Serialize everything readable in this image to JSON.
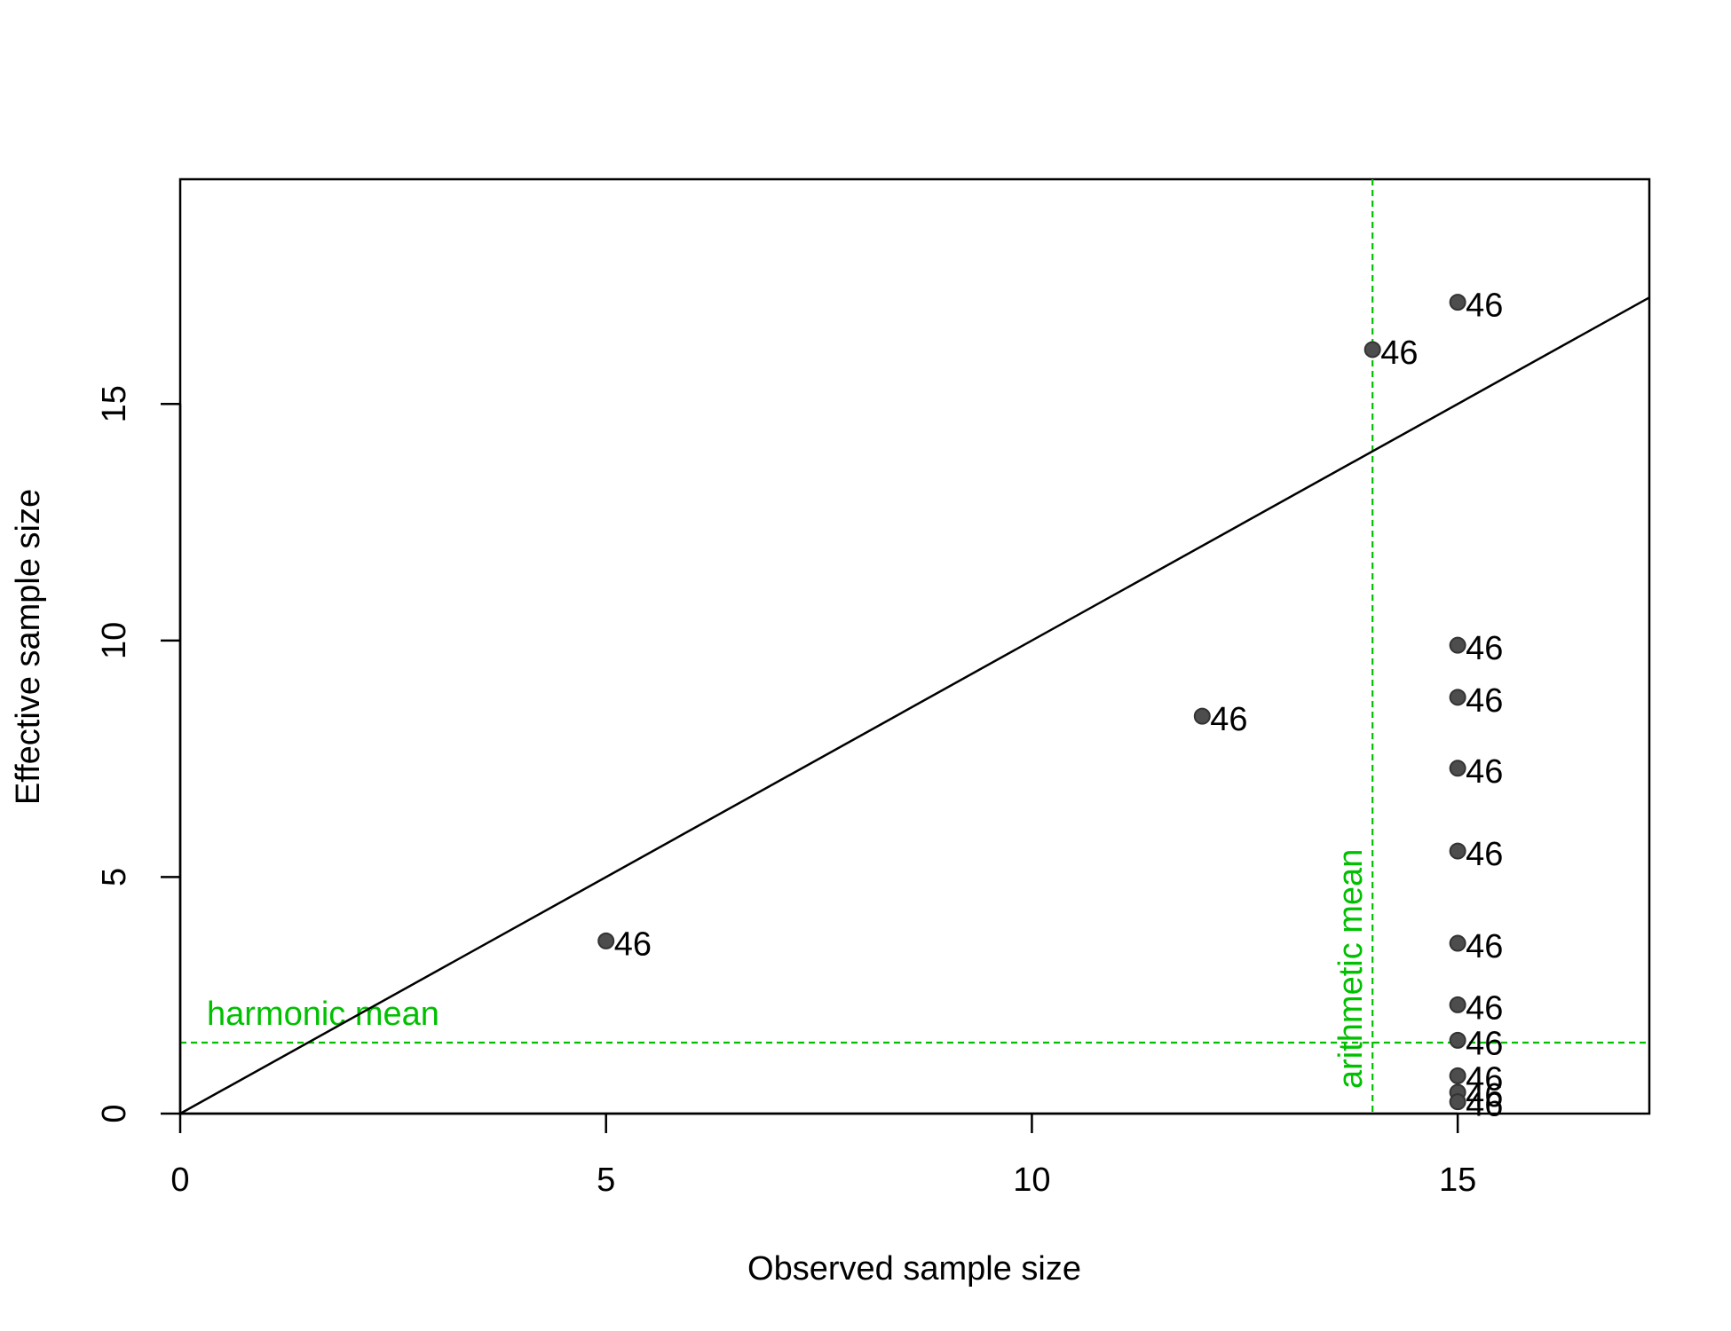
{
  "chart_data": {
    "type": "scatter",
    "title": "",
    "xlabel": "Observed sample size",
    "ylabel": "Effective sample size",
    "xlim": [
      0,
      17.25
    ],
    "ylim": [
      0,
      19.75
    ],
    "x_ticks": [
      0,
      5,
      10,
      15
    ],
    "y_ticks": [
      0,
      5,
      10,
      15
    ],
    "grid": false,
    "point_color": "#4d4d4d",
    "identity_line": {
      "from": [
        0,
        0
      ],
      "to": [
        17.25,
        17.25
      ],
      "color": "#000000"
    },
    "reference_lines": [
      {
        "name": "harmonic",
        "label": "harmonic mean",
        "orientation": "horizontal",
        "value": 1.5,
        "color": "#00c000"
      },
      {
        "name": "arithmetic",
        "label": "arithmetic mean",
        "orientation": "vertical",
        "value": 14.0,
        "color": "#00c000"
      }
    ],
    "points": [
      {
        "x": 5,
        "y": 3.65,
        "label": "46"
      },
      {
        "x": 12,
        "y": 8.4,
        "label": "46"
      },
      {
        "x": 14,
        "y": 16.15,
        "label": "46"
      },
      {
        "x": 15,
        "y": 17.15,
        "label": "46"
      },
      {
        "x": 15,
        "y": 9.9,
        "label": "46"
      },
      {
        "x": 15,
        "y": 8.8,
        "label": "46"
      },
      {
        "x": 15,
        "y": 7.3,
        "label": "46"
      },
      {
        "x": 15,
        "y": 5.55,
        "label": "46"
      },
      {
        "x": 15,
        "y": 3.6,
        "label": "46"
      },
      {
        "x": 15,
        "y": 2.3,
        "label": "46"
      },
      {
        "x": 15,
        "y": 1.55,
        "label": "46"
      },
      {
        "x": 15,
        "y": 0.8,
        "label": "46"
      },
      {
        "x": 15,
        "y": 0.45,
        "label": "46"
      },
      {
        "x": 15,
        "y": 0.25,
        "label": "46"
      }
    ]
  }
}
